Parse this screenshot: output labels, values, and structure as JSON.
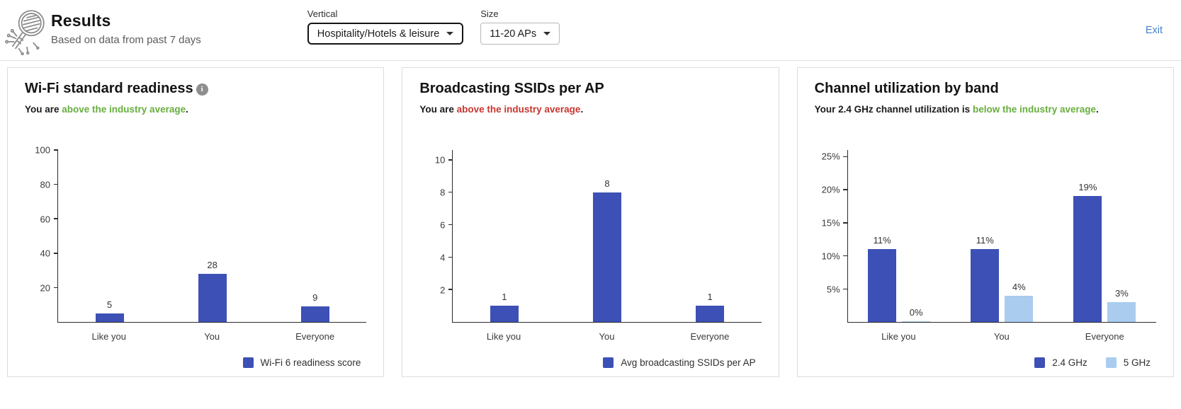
{
  "header": {
    "title": "Results",
    "subtitle": "Based on data from past 7 days",
    "filters": [
      {
        "label": "Vertical",
        "value": "Hospitality/Hotels & leisure"
      },
      {
        "label": "Size",
        "value": "11-20 APs"
      }
    ],
    "exit_label": "Exit"
  },
  "colors": {
    "bar_primary": "#3d50b5",
    "bar_secondary": "#a9ccef",
    "positive_green": "#67ae3e",
    "negative_red": "#c9352e",
    "link_blue": "#4380c9",
    "info_icon_gray": "#8e8e8e"
  },
  "panels": [
    {
      "title": "Wi-Fi standard readiness",
      "info_icon": true,
      "subtitle": {
        "prefix": "You are ",
        "highlight": "above the industry average",
        "suffix": ".",
        "highlight_color": "#67ae3e"
      },
      "legend": [
        {
          "label": "Wi-Fi 6 readiness score",
          "color": "#3d50b5"
        }
      ]
    },
    {
      "title": "Broadcasting SSIDs per AP",
      "info_icon": false,
      "subtitle": {
        "prefix": "You are ",
        "highlight": "above the industry average",
        "suffix": ".",
        "highlight_color": "#c9352e"
      },
      "legend": [
        {
          "label": "Avg broadcasting SSIDs per AP",
          "color": "#3d50b5"
        }
      ]
    },
    {
      "title": "Channel utilization by band",
      "info_icon": false,
      "subtitle": {
        "prefix": "Your 2.4 GHz channel utilization is ",
        "highlight": "below the industry average",
        "suffix": ".",
        "highlight_color": "#67ae3e"
      },
      "legend": [
        {
          "label": "2.4 GHz",
          "color": "#3d50b5"
        },
        {
          "label": "5 GHz",
          "color": "#a9ccef"
        }
      ]
    }
  ],
  "chart_data": [
    {
      "type": "bar",
      "title": "Wi-Fi standard readiness",
      "categories": [
        "Like you",
        "You",
        "Everyone"
      ],
      "series": [
        {
          "name": "Wi-Fi 6 readiness score",
          "color": "#3d50b5",
          "values": [
            5,
            28,
            9
          ],
          "labels": [
            "5",
            "28",
            "9"
          ]
        }
      ],
      "y_ticks": [
        {
          "value": 20,
          "label": "20"
        },
        {
          "value": 40,
          "label": "40"
        },
        {
          "value": 60,
          "label": "60"
        },
        {
          "value": 80,
          "label": "80"
        },
        {
          "value": 100,
          "label": "100"
        }
      ],
      "y_max": 100,
      "ylim": [
        0,
        100
      ],
      "grid": false,
      "legend_position": "bottom-right"
    },
    {
      "type": "bar",
      "title": "Broadcasting SSIDs per AP",
      "categories": [
        "Like you",
        "You",
        "Everyone"
      ],
      "series": [
        {
          "name": "Avg broadcasting SSIDs per AP",
          "color": "#3d50b5",
          "values": [
            1,
            8,
            1
          ],
          "labels": [
            "1",
            "8",
            "1"
          ]
        }
      ],
      "y_ticks": [
        {
          "value": 2,
          "label": "2"
        },
        {
          "value": 4,
          "label": "4"
        },
        {
          "value": 6,
          "label": "6"
        },
        {
          "value": 8,
          "label": "8"
        },
        {
          "value": 10,
          "label": "10"
        }
      ],
      "y_max": 10.6,
      "ylim": [
        0,
        10.6
      ],
      "grid": false,
      "legend_position": "bottom-right"
    },
    {
      "type": "bar",
      "title": "Channel utilization by band",
      "categories": [
        "Like you",
        "You",
        "Everyone"
      ],
      "series": [
        {
          "name": "2.4 GHz",
          "color": "#3d50b5",
          "values": [
            11,
            11,
            19
          ],
          "labels": [
            "11%",
            "11%",
            "19%"
          ]
        },
        {
          "name": "5 GHz",
          "color": "#a9ccef",
          "values": [
            0,
            4,
            3
          ],
          "labels": [
            "0%",
            "4%",
            "3%"
          ]
        }
      ],
      "y_ticks": [
        {
          "value": 5,
          "label": "5%"
        },
        {
          "value": 10,
          "label": "10%"
        },
        {
          "value": 15,
          "label": "15%"
        },
        {
          "value": 20,
          "label": "20%"
        },
        {
          "value": 25,
          "label": "25%"
        }
      ],
      "y_max": 26,
      "ylim": [
        0,
        26
      ],
      "grid": false,
      "legend_position": "bottom-right"
    }
  ]
}
